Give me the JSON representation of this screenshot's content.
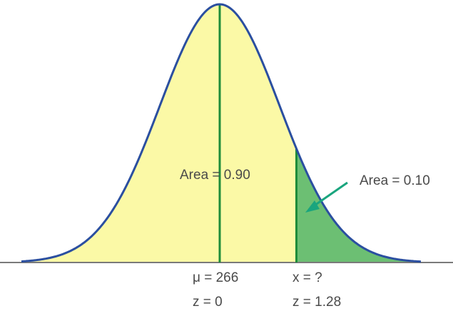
{
  "diagram": {
    "area_left_label": "Area = 0.90",
    "area_right_label": "Area = 0.10",
    "mean_label": "μ = 266",
    "mean_z_label": "z = 0",
    "x_label": "x = ?",
    "x_z_label": "z = 1.28",
    "area_left_value": 0.9,
    "area_right_value": 0.1,
    "mean": 266,
    "z_cut": 1.28
  },
  "colors": {
    "left_region_fill": "#fbf9a6",
    "right_region_fill": "#6cbf73",
    "curve": "#2b4fa0",
    "divider_lines": "#1e8c3a",
    "baseline": "#7a7a7a",
    "arrow": "#1aa57e",
    "text": "#4a4a4a"
  }
}
